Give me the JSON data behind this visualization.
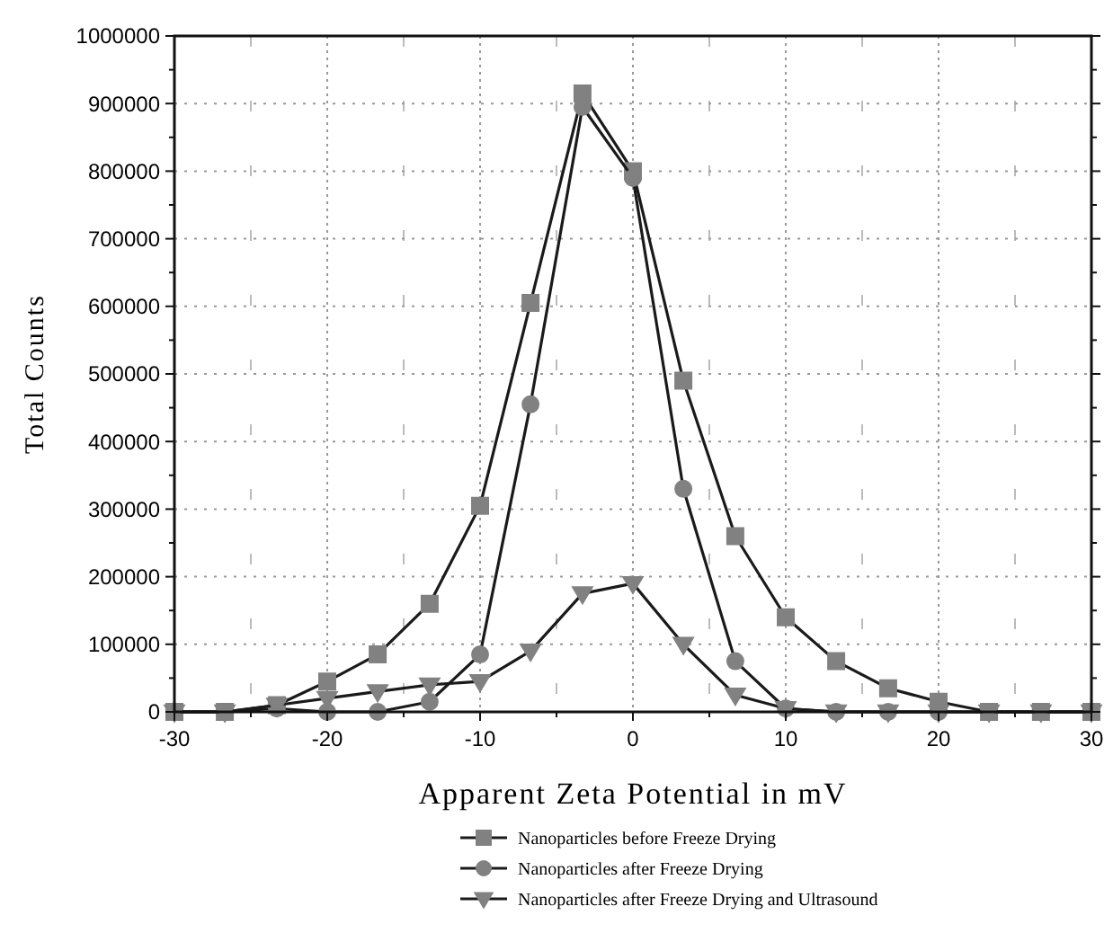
{
  "chart_data": {
    "type": "line",
    "xlabel": "Apparent Zeta Potential in mV",
    "ylabel": "Total Counts",
    "x": [
      -30,
      -26.7,
      -23.3,
      -20,
      -16.7,
      -13.3,
      -10,
      -6.7,
      -3.3,
      0,
      3.3,
      6.7,
      10,
      13.3,
      16.7,
      20,
      23.3,
      26.7,
      30
    ],
    "series": [
      {
        "name": "Nanoparticles before Freeze Drying",
        "color": "#1a1a1a",
        "marker": "square",
        "values": [
          0,
          0,
          10000,
          45000,
          85000,
          160000,
          305000,
          605000,
          915000,
          800000,
          490000,
          260000,
          140000,
          75000,
          35000,
          15000,
          0,
          0,
          0
        ]
      },
      {
        "name": "Nanoparticles after Freeze Drying",
        "color": "#1a1a1a",
        "marker": "circle",
        "values": [
          0,
          0,
          5000,
          0,
          0,
          15000,
          85000,
          455000,
          895000,
          790000,
          330000,
          75000,
          5000,
          0,
          0,
          0,
          0,
          0,
          0
        ]
      },
      {
        "name": "Nanoparticles after Freeze Drying and Ultrasound",
        "color": "#1a1a1a",
        "marker": "triangle",
        "values": [
          0,
          0,
          10000,
          20000,
          30000,
          40000,
          45000,
          90000,
          175000,
          190000,
          100000,
          25000,
          5000,
          0,
          0,
          0,
          0,
          0,
          0
        ]
      }
    ],
    "xlim": [
      -30,
      30
    ],
    "xticks": [
      -30,
      -20,
      -10,
      0,
      10,
      20,
      30
    ],
    "ylim": [
      0,
      1000000
    ],
    "yticks": [
      0,
      100000,
      200000,
      300000,
      400000,
      500000,
      600000,
      700000,
      800000,
      900000,
      1000000
    ],
    "grid": true,
    "legend": "bottom"
  }
}
